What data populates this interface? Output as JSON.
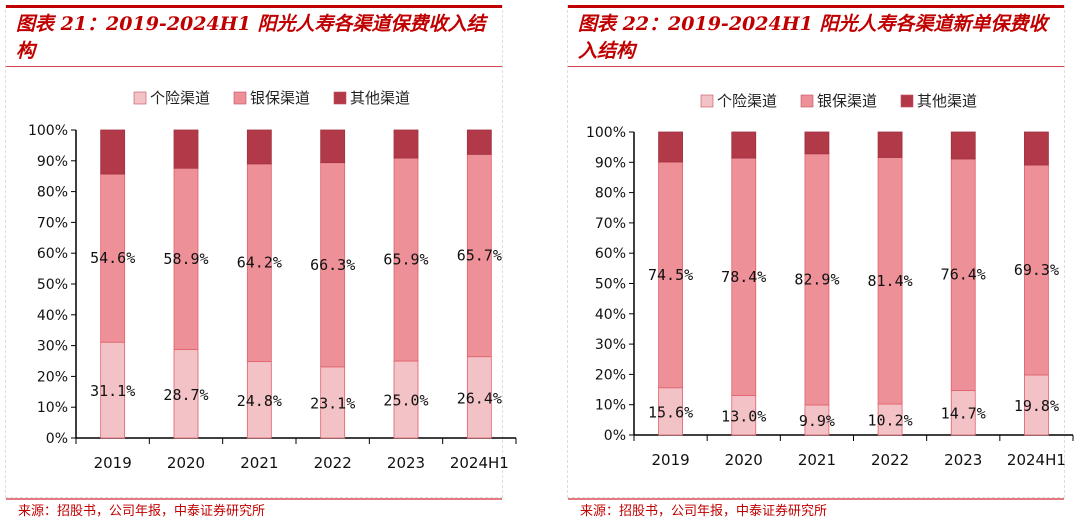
{
  "colors": {
    "title": "#c00000",
    "personal": "#f3c2c7",
    "bank": "#ee9098",
    "other": "#b23a48"
  },
  "chart_data": [
    {
      "type": "bar",
      "stacked": true,
      "title": "图表 21：2019-2024H1 阳光人寿各渠道保费收入结构",
      "categories": [
        "2019",
        "2020",
        "2021",
        "2022",
        "2023",
        "2024H1"
      ],
      "ylim": [
        0,
        100
      ],
      "yticks": [
        "0%",
        "10%",
        "20%",
        "30%",
        "40%",
        "50%",
        "60%",
        "70%",
        "80%",
        "90%",
        "100%"
      ],
      "legend": "top",
      "series": [
        {
          "name": "个险渠道",
          "values": [
            31.1,
            28.7,
            24.8,
            23.1,
            25.0,
            26.4
          ],
          "labels": [
            "31.1%",
            "28.7%",
            "24.8%",
            "23.1%",
            "25.0%",
            "26.4%"
          ]
        },
        {
          "name": "银保渠道",
          "values": [
            54.6,
            58.9,
            64.2,
            66.3,
            65.9,
            65.7
          ],
          "labels": [
            "54.6%",
            "58.9%",
            "64.2%",
            "66.3%",
            "65.9%",
            "65.7%"
          ]
        },
        {
          "name": "其他渠道",
          "values": [
            14.3,
            12.4,
            11.0,
            10.6,
            9.1,
            7.9
          ]
        }
      ],
      "source": "来源：招股书，公司年报，中泰证券研究所"
    },
    {
      "type": "bar",
      "stacked": true,
      "title": "图表 22：2019-2024H1 阳光人寿各渠道新单保费收入结构",
      "categories": [
        "2019",
        "2020",
        "2021",
        "2022",
        "2023",
        "2024H1"
      ],
      "ylim": [
        0,
        100
      ],
      "yticks": [
        "0%",
        "10%",
        "20%",
        "30%",
        "40%",
        "50%",
        "60%",
        "70%",
        "80%",
        "90%",
        "100%"
      ],
      "legend": "top",
      "series": [
        {
          "name": "个险渠道",
          "values": [
            15.6,
            13.0,
            9.9,
            10.2,
            14.7,
            19.8
          ],
          "labels": [
            "15.6%",
            "13.0%",
            "9.9%",
            "10.2%",
            "14.7%",
            "19.8%"
          ]
        },
        {
          "name": "银保渠道",
          "values": [
            74.5,
            78.4,
            82.9,
            81.4,
            76.4,
            69.3
          ],
          "labels": [
            "74.5%",
            "78.4%",
            "82.9%",
            "81.4%",
            "76.4%",
            "69.3%"
          ]
        },
        {
          "name": "其他渠道",
          "values": [
            9.9,
            8.6,
            7.2,
            8.4,
            8.9,
            10.9
          ]
        }
      ],
      "source": "来源：招股书，公司年报，中泰证券研究所"
    }
  ]
}
